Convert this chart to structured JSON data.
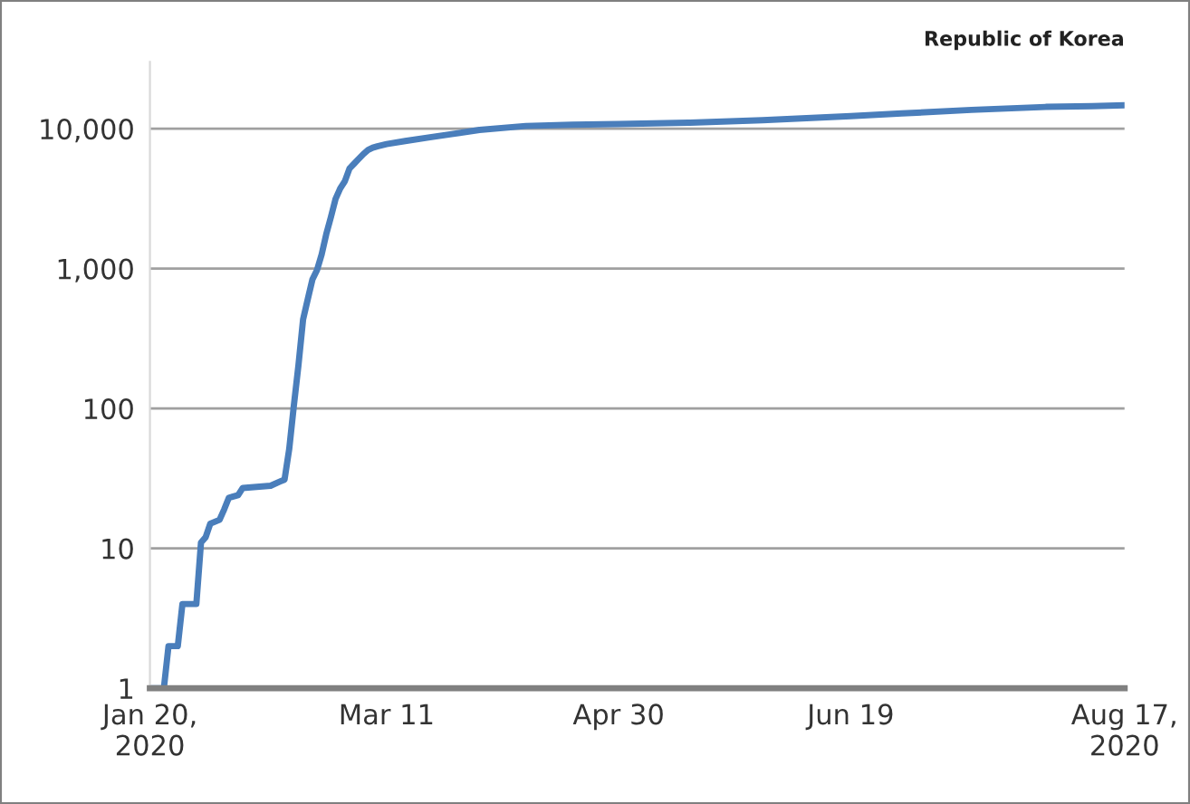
{
  "chart_data": {
    "type": "line",
    "log": true,
    "grid": "y",
    "legend": false,
    "marker": "none",
    "line_style": "solid",
    "x": [
      "2020-01-20",
      "2020-01-23",
      "2020-01-24",
      "2020-01-26",
      "2020-01-27",
      "2020-01-30",
      "2020-01-31",
      "2020-02-01",
      "2020-02-02",
      "2020-02-04",
      "2020-02-05",
      "2020-02-06",
      "2020-02-08",
      "2020-02-09",
      "2020-02-15",
      "2020-02-17",
      "2020-02-18",
      "2020-02-19",
      "2020-02-20",
      "2020-02-21",
      "2020-02-22",
      "2020-02-23",
      "2020-02-24",
      "2020-02-25",
      "2020-02-26",
      "2020-02-27",
      "2020-02-28",
      "2020-02-29",
      "2020-03-01",
      "2020-03-02",
      "2020-03-03",
      "2020-03-04",
      "2020-03-05",
      "2020-03-06",
      "2020-03-07",
      "2020-03-08",
      "2020-03-09",
      "2020-03-11",
      "2020-03-15",
      "2020-03-20",
      "2020-03-25",
      "2020-03-31",
      "2020-04-10",
      "2020-04-20",
      "2020-04-30",
      "2020-05-15",
      "2020-05-31",
      "2020-06-19",
      "2020-06-30",
      "2020-07-15",
      "2020-07-31",
      "2020-08-10",
      "2020-08-17"
    ],
    "series": [
      {
        "name": "Republic of Korea",
        "color": "#4a7ebb",
        "values": [
          1,
          1,
          2,
          2,
          4,
          4,
          11,
          12,
          15,
          16,
          19,
          23,
          24,
          27,
          28,
          30,
          31,
          51,
          104,
          204,
          433,
          602,
          833,
          977,
          1261,
          1766,
          2337,
          3150,
          3736,
          4212,
          5186,
          5621,
          6088,
          6593,
          7041,
          7313,
          7478,
          7755,
          8162,
          8652,
          9137,
          9786,
          10450,
          10674,
          10774,
          11018,
          11503,
          12306,
          12850,
          13612,
          14300,
          14500,
          14700
        ]
      }
    ],
    "xlim": [
      "2020-01-20",
      "2020-08-17"
    ],
    "xticks": [
      {
        "value": "2020-01-20",
        "label": "Jan 20,\n2020"
      },
      {
        "value": "2020-03-11",
        "label": "Mar 11"
      },
      {
        "value": "2020-04-30",
        "label": "Apr 30"
      },
      {
        "value": "2020-06-19",
        "label": "Jun 19"
      },
      {
        "value": "2020-08-17",
        "label": "Aug 17,\n2020"
      }
    ],
    "ylim": [
      1,
      30000
    ],
    "yticks": [
      {
        "value": 1,
        "label": "1"
      },
      {
        "value": 10,
        "label": "10"
      },
      {
        "value": 100,
        "label": "100"
      },
      {
        "value": 1000,
        "label": "1,000"
      },
      {
        "value": 10000,
        "label": "10,000"
      }
    ]
  }
}
